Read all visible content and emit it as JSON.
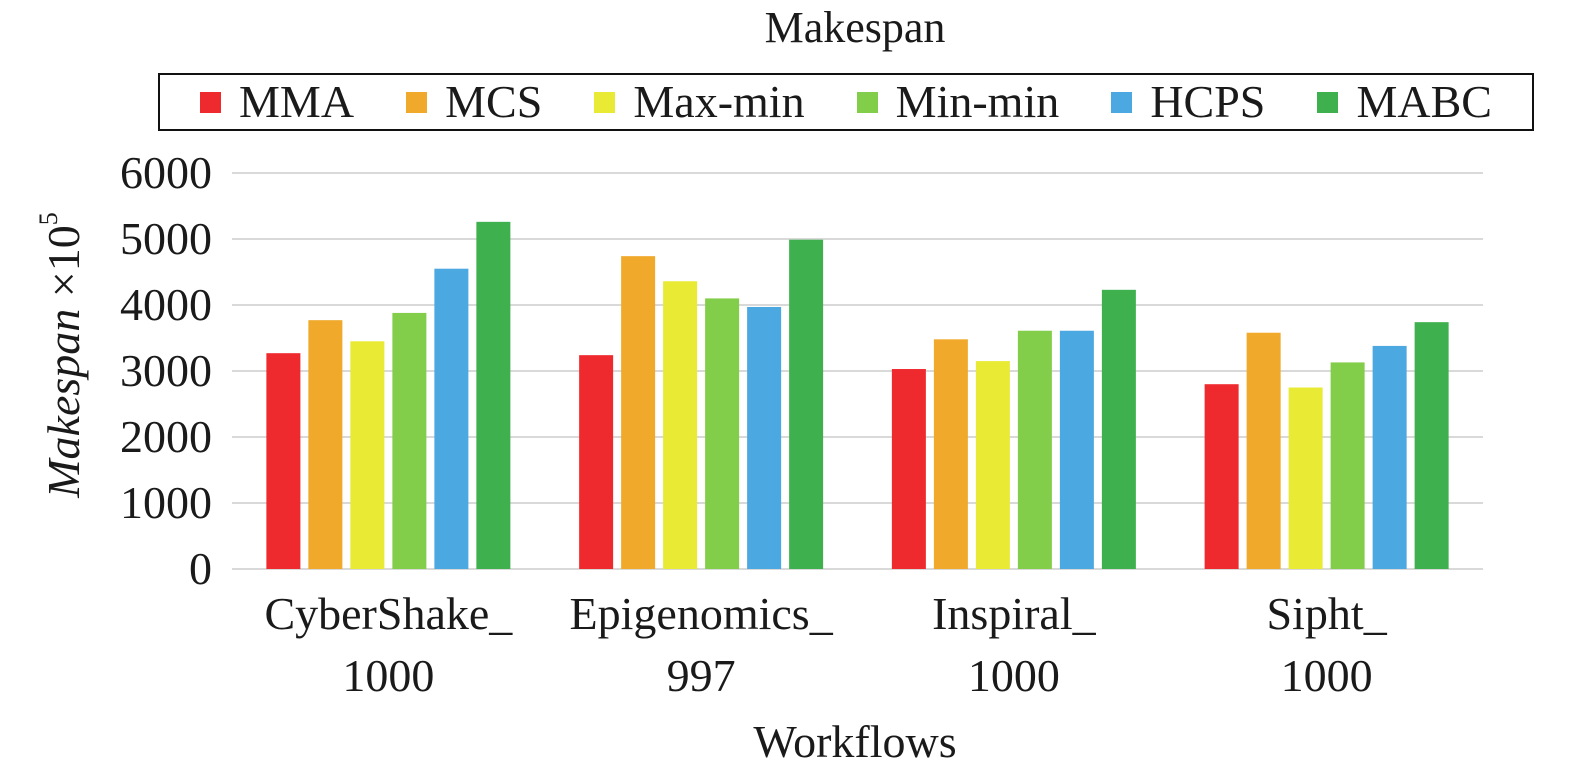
{
  "chart_data": {
    "type": "bar",
    "title": "Makespan",
    "xlabel": "Workflows",
    "ylabel": "Makespan ×10⁵",
    "ylabel_main": "Makespan",
    "ylabel_unit": "×10",
    "ylabel_exp": "5",
    "ylim": [
      0,
      6000
    ],
    "yticks": [
      "0",
      "1000",
      "2000",
      "3000",
      "4000",
      "5000",
      "6000"
    ],
    "grid": true,
    "legend_position": "top",
    "categories": [
      {
        "line1": "CyberShake_",
        "line2": "1000"
      },
      {
        "line1": "Epigenomics_",
        "line2": "997"
      },
      {
        "line1": "Inspiral_",
        "line2": "1000"
      },
      {
        "line1": "Sipht_",
        "line2": "1000"
      }
    ],
    "series": [
      {
        "name": "MMA",
        "color": "#ee2a2f",
        "values": [
          3270,
          3240,
          3030,
          2800
        ]
      },
      {
        "name": "MCS",
        "color": "#f0a92b",
        "values": [
          3770,
          4740,
          3480,
          3580
        ]
      },
      {
        "name": "Max-min",
        "color": "#e8ea34",
        "values": [
          3450,
          4360,
          3150,
          2750
        ]
      },
      {
        "name": "Min-min",
        "color": "#82cd4a",
        "values": [
          3880,
          4100,
          3610,
          3130
        ]
      },
      {
        "name": "HCPS",
        "color": "#4ca8e0",
        "values": [
          4550,
          3970,
          3610,
          3380
        ]
      },
      {
        "name": "MABC",
        "color": "#3fb04e",
        "values": [
          5260,
          4990,
          4230,
          3740
        ]
      }
    ]
  }
}
